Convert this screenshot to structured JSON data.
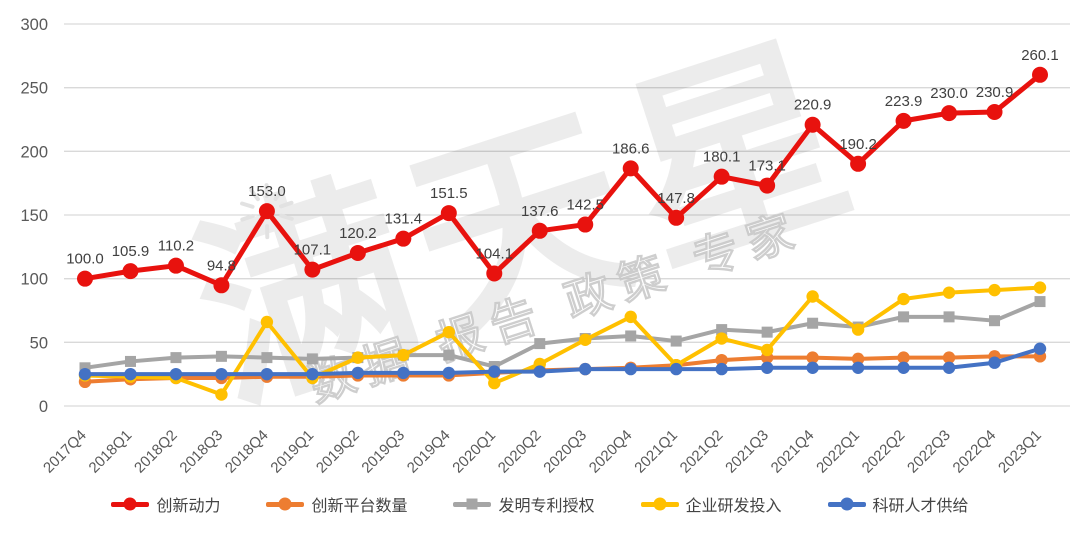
{
  "watermark": {
    "main_text": "满天星",
    "sub_text": "数据  报告  政策  专家"
  },
  "chart_data": {
    "type": "line",
    "title": "",
    "xlabel": "",
    "ylabel": "",
    "categories": [
      "2017Q4",
      "2018Q1",
      "2018Q2",
      "2018Q3",
      "2018Q4",
      "2019Q1",
      "2019Q2",
      "2019Q3",
      "2019Q4",
      "2020Q1",
      "2020Q2",
      "2020Q3",
      "2020Q4",
      "2021Q1",
      "2021Q2",
      "2021Q3",
      "2021Q4",
      "2022Q1",
      "2022Q2",
      "2022Q3",
      "2022Q4",
      "2023Q1"
    ],
    "series": [
      {
        "name": "创新动力",
        "slug": "innovation-momentum",
        "color": "#e8120e",
        "marker": "circle",
        "show_labels": true,
        "values": [
          100.0,
          105.9,
          110.2,
          94.8,
          153.0,
          107.1,
          120.2,
          131.4,
          151.5,
          104.1,
          137.6,
          142.5,
          186.6,
          147.8,
          180.1,
          173.1,
          220.9,
          190.2,
          223.9,
          230.0,
          230.9,
          260.1
        ]
      },
      {
        "name": "创新平台数量",
        "slug": "innovation-platform-count",
        "color": "#ed7d31",
        "marker": "circle",
        "show_labels": false,
        "values": [
          19,
          21,
          22,
          22,
          23,
          23,
          24,
          24,
          24,
          26,
          28,
          29,
          30,
          32,
          36,
          38,
          38,
          37,
          38,
          38,
          39,
          39
        ]
      },
      {
        "name": "发明专利授权",
        "slug": "invention-patent-grants",
        "color": "#a5a5a5",
        "marker": "square",
        "show_labels": false,
        "values": [
          30,
          35,
          38,
          39,
          38,
          37,
          38,
          40,
          40,
          31,
          49,
          53,
          55,
          51,
          60,
          58,
          65,
          62,
          70,
          70,
          67,
          82
        ]
      },
      {
        "name": "企业研发投入",
        "slug": "enterprise-rd-investment",
        "color": "#ffc000",
        "marker": "circle",
        "show_labels": false,
        "values": [
          24,
          23,
          22,
          9,
          66,
          22,
          38,
          40,
          58,
          18,
          33,
          52,
          70,
          32,
          53,
          44,
          86,
          60,
          84,
          89,
          91,
          93
        ]
      },
      {
        "name": "科研人才供给",
        "slug": "research-talent-supply",
        "color": "#4472c4",
        "marker": "circle",
        "show_labels": false,
        "values": [
          25,
          25,
          25,
          25,
          25,
          25,
          26,
          26,
          26,
          27,
          27,
          29,
          29,
          29,
          29,
          30,
          30,
          30,
          30,
          30,
          34,
          45
        ]
      }
    ],
    "ylim": [
      0,
      300
    ],
    "yticks": [
      0,
      50,
      100,
      150,
      200,
      250,
      300
    ],
    "grid": "horizontal",
    "legend_position": "bottom"
  },
  "colors": {
    "background": "#ffffff",
    "gridline": "#d9d9d9",
    "axis_text": "#595959",
    "data_label": "#404040",
    "watermark_main": "#000000",
    "watermark_sub": "#ffffff"
  }
}
